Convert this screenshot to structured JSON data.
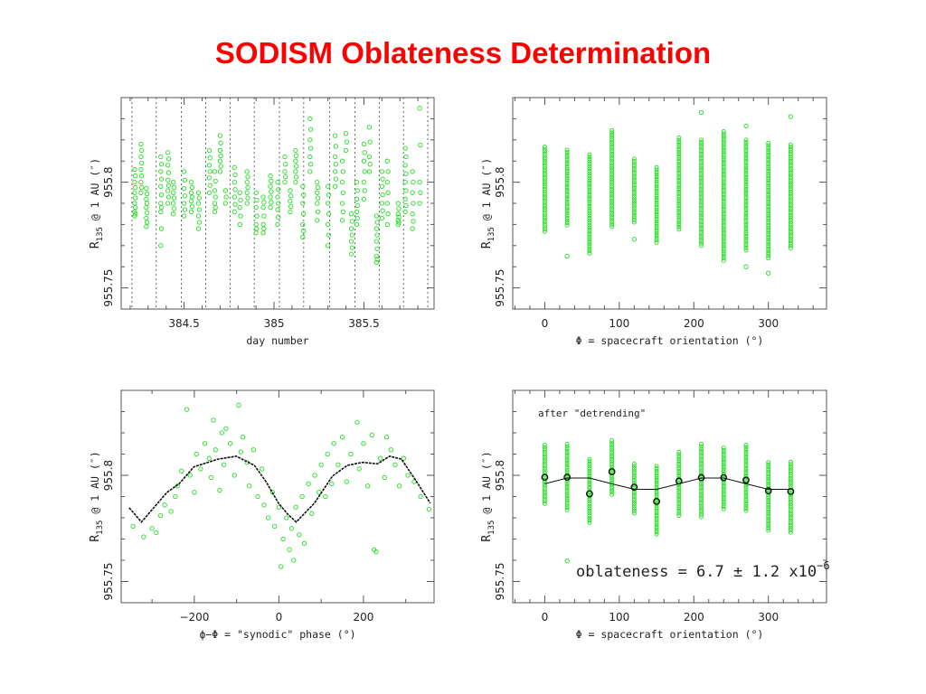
{
  "title": "SODISM Oblateness Determination",
  "colors": {
    "title": "#ff0000",
    "points": "#22dd22",
    "model": "#111111",
    "frame": "#555555"
  },
  "chart_data": [
    {
      "id": "tl",
      "type": "scatter",
      "xlabel": "day number",
      "ylabel": {
        "main": "R",
        "sub": "135",
        "rest": " @ 1 AU  (″)"
      },
      "xlim": [
        384.15,
        385.89
      ],
      "ylim": [
        955.74,
        955.84
      ],
      "xticks": [
        384.5,
        385,
        385.5
      ],
      "xtick_labels": [
        "384.5",
        "385",
        "385.5"
      ],
      "yticks": [
        955.75,
        955.8
      ],
      "ytick_labels": [
        "955.75",
        "955.8"
      ],
      "grid": false,
      "vertical_dotted_lines": [
        384.21,
        384.345,
        384.485,
        384.62,
        384.755,
        384.89,
        385.03,
        385.165,
        385.31,
        385.45,
        385.585,
        385.72,
        385.855
      ],
      "columns": [
        [
          384.225,
          [
            955.806,
            955.8,
            955.795,
            955.79,
            955.786,
            955.784
          ]
        ],
        [
          384.26,
          [
            955.818,
            955.812,
            955.806,
            955.8,
            955.795
          ]
        ],
        [
          384.29,
          [
            955.797,
            955.792,
            955.788,
            955.783,
            955.779
          ]
        ],
        [
          384.37,
          [
            955.812,
            955.805,
            955.798,
            955.79,
            955.786,
            955.77
          ]
        ],
        [
          384.41,
          [
            955.814,
            955.808,
            955.801,
            955.796,
            955.79
          ]
        ],
        [
          384.44,
          [
            955.8,
            955.795,
            955.79,
            955.785
          ]
        ],
        [
          384.5,
          [
            955.805,
            955.797,
            955.79,
            955.784
          ]
        ],
        [
          384.54,
          [
            955.8,
            955.795,
            955.791,
            955.786
          ]
        ],
        [
          384.58,
          [
            955.795,
            955.79,
            955.784,
            955.778
          ]
        ],
        [
          384.64,
          [
            955.815,
            955.808,
            955.802,
            955.795
          ]
        ],
        [
          384.67,
          [
            955.805,
            955.796,
            955.79,
            955.786
          ]
        ],
        [
          384.7,
          [
            955.822,
            955.815,
            955.81,
            955.805
          ]
        ],
        [
          384.73,
          [
            955.796,
            955.79
          ]
        ],
        [
          384.78,
          [
            955.807,
            955.8,
            955.793,
            955.786
          ]
        ],
        [
          384.81,
          [
            955.795,
            955.788,
            955.78
          ]
        ],
        [
          384.85,
          [
            955.805,
            955.8,
            955.795,
            955.79
          ]
        ],
        [
          384.9,
          [
            955.795,
            955.788,
            955.78,
            955.776
          ]
        ],
        [
          384.94,
          [
            955.793,
            955.788,
            955.78,
            955.776
          ]
        ],
        [
          384.98,
          [
            955.803,
            955.798,
            955.793,
            955.788
          ]
        ],
        [
          385.02,
          [
            955.8,
            955.793,
            955.787,
            955.78
          ]
        ],
        [
          385.06,
          [
            955.812,
            955.805,
            955.8
          ]
        ],
        [
          385.09,
          [
            955.796,
            955.791,
            955.786
          ]
        ],
        [
          385.12,
          [
            955.815,
            955.81,
            955.805,
            955.8
          ]
        ],
        [
          385.16,
          [
            955.798,
            955.79,
            955.78,
            955.774
          ]
        ],
        [
          385.2,
          [
            955.83,
            955.82,
            955.812,
            955.805
          ]
        ],
        [
          385.24,
          [
            955.8,
            955.795,
            955.79,
            955.782
          ]
        ],
        [
          385.3,
          [
            955.798,
            955.79,
            955.78,
            955.77
          ]
        ],
        [
          385.34,
          [
            955.822,
            955.812,
            955.805,
            955.798
          ]
        ],
        [
          385.38,
          [
            955.81,
            955.8,
            955.79,
            955.782
          ]
        ],
        [
          385.4,
          [
            955.823,
            955.815
          ]
        ],
        [
          385.43,
          [
            955.785,
            955.778,
            955.772,
            955.766
          ]
        ],
        [
          385.46,
          [
            955.8,
            955.792,
            955.786,
            955.78
          ]
        ],
        [
          385.5,
          [
            955.818,
            955.81,
            955.8,
            955.792
          ]
        ],
        [
          385.53,
          [
            955.826,
            955.812,
            955.805
          ]
        ],
        [
          385.57,
          [
            955.784,
            955.778,
            955.772,
            955.765,
            955.762
          ]
        ],
        [
          385.6,
          [
            955.805,
            955.798,
            955.79,
            955.783
          ]
        ],
        [
          385.63,
          [
            955.81,
            955.8,
            955.79,
            955.78
          ]
        ],
        [
          385.69,
          [
            955.79,
            955.785,
            955.782,
            955.78
          ]
        ],
        [
          385.73,
          [
            955.816,
            955.808,
            955.8,
            955.792,
            955.786
          ]
        ],
        [
          385.77,
          [
            955.805,
            955.795,
            955.785,
            955.778
          ]
        ],
        [
          385.81,
          [
            955.835,
            955.8,
            955.79
          ]
        ]
      ]
    },
    {
      "id": "tr",
      "type": "scatter",
      "xlabel": "Φ = spacecraft orientation  (°)",
      "ylabel": {
        "main": "R",
        "sub": "135",
        "rest": " @ 1 AU  (″)"
      },
      "xlim": [
        -43,
        378
      ],
      "ylim": [
        955.74,
        955.84
      ],
      "xticks": [
        0,
        100,
        200,
        300
      ],
      "xtick_labels": [
        "0",
        "100",
        "200",
        "300"
      ],
      "yticks": [
        955.75,
        955.8
      ],
      "ytick_labels": [
        "955.75",
        "955.8"
      ],
      "grid": false,
      "groups": [
        {
          "x": 0,
          "range": [
            955.776,
            955.8167
          ],
          "outliers": []
        },
        {
          "x": 30,
          "range": [
            955.7789,
            955.8152
          ],
          "outliers": [
            955.765
          ]
        },
        {
          "x": 60,
          "range": [
            955.766,
            955.813
          ],
          "outliers": []
        },
        {
          "x": 90,
          "range": [
            955.778,
            955.8245
          ],
          "outliers": []
        },
        {
          "x": 120,
          "range": [
            955.78,
            955.811
          ],
          "outliers": [
            955.773
          ]
        },
        {
          "x": 150,
          "range": [
            955.771,
            955.807
          ],
          "outliers": []
        },
        {
          "x": 180,
          "range": [
            955.7775,
            955.821
          ],
          "outliers": []
        },
        {
          "x": 210,
          "range": [
            955.77,
            955.82
          ],
          "outliers": [
            955.833
          ]
        },
        {
          "x": 240,
          "range": [
            955.7625,
            955.824
          ],
          "outliers": []
        },
        {
          "x": 270,
          "range": [
            955.7675,
            955.82
          ],
          "outliers": [
            955.8266,
            955.76
          ]
        },
        {
          "x": 300,
          "range": [
            955.764,
            955.8185
          ],
          "outliers": [
            955.757
          ]
        },
        {
          "x": 330,
          "range": [
            955.768,
            955.8177
          ],
          "outliers": [
            955.831
          ]
        }
      ]
    },
    {
      "id": "bl",
      "type": "scatter",
      "xlabel": "ϕ−Φ = \"synodic\" phase  (°)",
      "ylabel": {
        "main": "R",
        "sub": "135",
        "rest": " @ 1 AU  (″)"
      },
      "xlim": [
        -373,
        367
      ],
      "ylim": [
        955.74,
        955.84
      ],
      "xticks": [
        -200,
        0,
        200
      ],
      "xtick_labels": [
        "−200",
        "0",
        "200"
      ],
      "yticks": [
        955.75,
        955.8
      ],
      "ytick_labels": [
        "955.75",
        "955.8"
      ],
      "grid": false,
      "points": [
        [
          -345,
          955.776
        ],
        [
          -320,
          955.771
        ],
        [
          -300,
          955.775
        ],
        [
          -290,
          955.773
        ],
        [
          -280,
          955.781
        ],
        [
          -270,
          955.786
        ],
        [
          -255,
          955.783
        ],
        [
          -245,
          955.79
        ],
        [
          -240,
          955.795
        ],
        [
          -230,
          955.802
        ],
        [
          -218,
          955.831
        ],
        [
          -210,
          955.8
        ],
        [
          -200,
          955.792
        ],
        [
          -195,
          955.81
        ],
        [
          -185,
          955.803
        ],
        [
          -175,
          955.815
        ],
        [
          -165,
          955.808
        ],
        [
          -160,
          955.799
        ],
        [
          -155,
          955.826
        ],
        [
          -150,
          955.812
        ],
        [
          -140,
          955.793
        ],
        [
          -135,
          955.82
        ],
        [
          -130,
          955.805
        ],
        [
          -125,
          955.822
        ],
        [
          -115,
          955.815
        ],
        [
          -105,
          955.8
        ],
        [
          -95,
          955.833
        ],
        [
          -90,
          955.811
        ],
        [
          -85,
          955.818
        ],
        [
          -75,
          955.806
        ],
        [
          -70,
          955.795
        ],
        [
          -60,
          955.812
        ],
        [
          -50,
          955.79
        ],
        [
          -40,
          955.803
        ],
        [
          -35,
          955.786
        ],
        [
          -25,
          955.78
        ],
        [
          -15,
          955.792
        ],
        [
          -10,
          955.776
        ],
        [
          0,
          955.785
        ],
        [
          5,
          955.757
        ],
        [
          10,
          955.77
        ],
        [
          18,
          955.78
        ],
        [
          25,
          955.765
        ],
        [
          30,
          955.775
        ],
        [
          35,
          955.76
        ],
        [
          40,
          955.785
        ],
        [
          48,
          955.772
        ],
        [
          55,
          955.79
        ],
        [
          60,
          955.768
        ],
        [
          70,
          955.796
        ],
        [
          78,
          955.782
        ],
        [
          85,
          955.8
        ],
        [
          95,
          955.792
        ],
        [
          100,
          955.805
        ],
        [
          110,
          955.79
        ],
        [
          115,
          955.81
        ],
        [
          125,
          955.796
        ],
        [
          130,
          955.815
        ],
        [
          140,
          955.805
        ],
        [
          150,
          955.818
        ],
        [
          160,
          955.797
        ],
        [
          170,
          955.81
        ],
        [
          185,
          955.825
        ],
        [
          190,
          955.803
        ],
        [
          200,
          955.815
        ],
        [
          210,
          955.795
        ],
        [
          220,
          955.819
        ],
        [
          225,
          955.765
        ],
        [
          230,
          955.764
        ],
        [
          240,
          955.808
        ],
        [
          250,
          955.799
        ],
        [
          255,
          955.818
        ],
        [
          265,
          955.812
        ],
        [
          275,
          955.805
        ],
        [
          285,
          955.795
        ],
        [
          295,
          955.808
        ],
        [
          305,
          955.8
        ],
        [
          320,
          955.797
        ],
        [
          335,
          955.79
        ],
        [
          355,
          955.784
        ]
      ],
      "trend": [
        [
          -354,
          955.7847
        ],
        [
          -325,
          955.778
        ],
        [
          -265,
          955.7919
        ],
        [
          -236,
          955.796
        ],
        [
          -201,
          955.804
        ],
        [
          -144,
          955.8076
        ],
        [
          -101,
          955.809
        ],
        [
          -58,
          955.8047
        ],
        [
          -30,
          955.7969
        ],
        [
          -1,
          955.7869
        ],
        [
          20,
          955.7819
        ],
        [
          41,
          955.778
        ],
        [
          84,
          955.7869
        ],
        [
          127,
          955.7997
        ],
        [
          162,
          955.8047
        ],
        [
          198,
          955.8061
        ],
        [
          233,
          955.8054
        ],
        [
          262,
          955.809
        ],
        [
          290,
          955.8076
        ],
        [
          326,
          955.7969
        ],
        [
          358,
          955.7869
        ]
      ]
    },
    {
      "id": "br",
      "type": "scatter",
      "annotation": "after \"detrending\"",
      "result": "oblateness = 6.7 ± 1.2 x10",
      "result_exp": "−6",
      "xlabel": "Φ = spacecraft orientation  (°)",
      "ylabel": {
        "main": "R",
        "sub": "135",
        "rest": " @ 1 AU  (″)"
      },
      "xlim": [
        -43,
        378
      ],
      "ylim": [
        955.74,
        955.84
      ],
      "xticks": [
        0,
        100,
        200,
        300
      ],
      "xtick_labels": [
        "0",
        "100",
        "200",
        "300"
      ],
      "yticks": [
        955.75,
        955.8
      ],
      "ytick_labels": [
        "955.75",
        "955.8"
      ],
      "grid": false,
      "groups": [
        {
          "x": 0,
          "range": [
            955.7866,
            955.8143
          ],
          "outliers": []
        },
        {
          "x": 30,
          "range": [
            955.7833,
            955.8147
          ],
          "outliers": [
            955.7597
          ]
        },
        {
          "x": 60,
          "range": [
            955.7769,
            955.8076
          ],
          "outliers": []
        },
        {
          "x": 90,
          "range": [
            955.7904,
            955.8164
          ],
          "outliers": []
        },
        {
          "x": 120,
          "range": [
            955.7814,
            955.8054
          ],
          "outliers": []
        },
        {
          "x": 150,
          "range": [
            955.7719,
            955.8043
          ],
          "outliers": []
        },
        {
          "x": 180,
          "range": [
            955.7804,
            955.8109
          ],
          "outliers": []
        },
        {
          "x": 210,
          "range": [
            955.7804,
            955.8147
          ],
          "outliers": []
        },
        {
          "x": 240,
          "range": [
            955.7833,
            955.8129
          ],
          "outliers": []
        },
        {
          "x": 270,
          "range": [
            955.7826,
            955.8143
          ],
          "outliers": []
        },
        {
          "x": 300,
          "range": [
            955.774,
            955.8061
          ],
          "outliers": []
        },
        {
          "x": 330,
          "range": [
            955.7729,
            955.8063
          ],
          "outliers": []
        }
      ],
      "means": [
        [
          0,
          955.7991
        ],
        [
          30,
          955.7991
        ],
        [
          60,
          955.7913
        ],
        [
          90,
          955.8017
        ],
        [
          120,
          955.7944
        ],
        [
          150,
          955.7877
        ],
        [
          180,
          955.7973
        ],
        [
          210,
          955.7989
        ],
        [
          240,
          955.7989
        ],
        [
          270,
          955.7977
        ],
        [
          300,
          955.7927
        ],
        [
          330,
          955.7924
        ]
      ],
      "model": [
        [
          0,
          955.796
        ],
        [
          30,
          955.7987
        ],
        [
          60,
          955.7987
        ],
        [
          90,
          955.796
        ],
        [
          120,
          955.7934
        ],
        [
          150,
          955.7934
        ],
        [
          180,
          955.796
        ],
        [
          210,
          955.7987
        ],
        [
          240,
          955.7987
        ],
        [
          270,
          955.796
        ],
        [
          300,
          955.7934
        ],
        [
          330,
          955.7934
        ]
      ]
    }
  ]
}
